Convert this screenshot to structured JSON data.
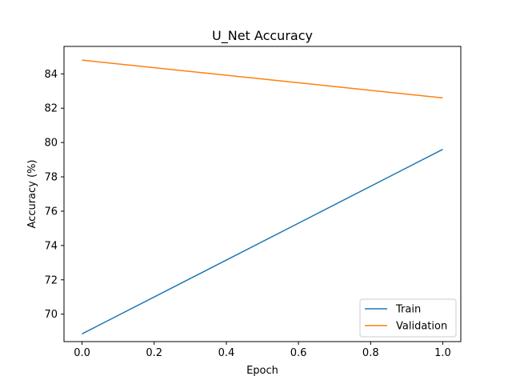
{
  "chart_data": {
    "type": "line",
    "title": "U_Net Accuracy",
    "xlabel": "Epoch",
    "ylabel": "Accuracy (%)",
    "x": [
      0.0,
      1.0
    ],
    "xlim": [
      -0.05,
      1.05
    ],
    "ylim": [
      68.4,
      85.6
    ],
    "xticks": [
      0.0,
      0.2,
      0.4,
      0.6,
      0.8,
      1.0
    ],
    "xtick_labels": [
      "0.0",
      "0.2",
      "0.4",
      "0.6",
      "0.8",
      "1.0"
    ],
    "yticks": [
      70,
      72,
      74,
      76,
      78,
      80,
      82,
      84
    ],
    "ytick_labels": [
      "70",
      "72",
      "74",
      "76",
      "78",
      "80",
      "82",
      "84"
    ],
    "series": [
      {
        "name": "Train",
        "values": [
          68.85,
          79.6
        ],
        "color": "#1f77b4"
      },
      {
        "name": "Validation",
        "values": [
          84.8,
          82.6
        ],
        "color": "#ff7f0e"
      }
    ],
    "legend_position": "lower-right",
    "grid": false
  }
}
